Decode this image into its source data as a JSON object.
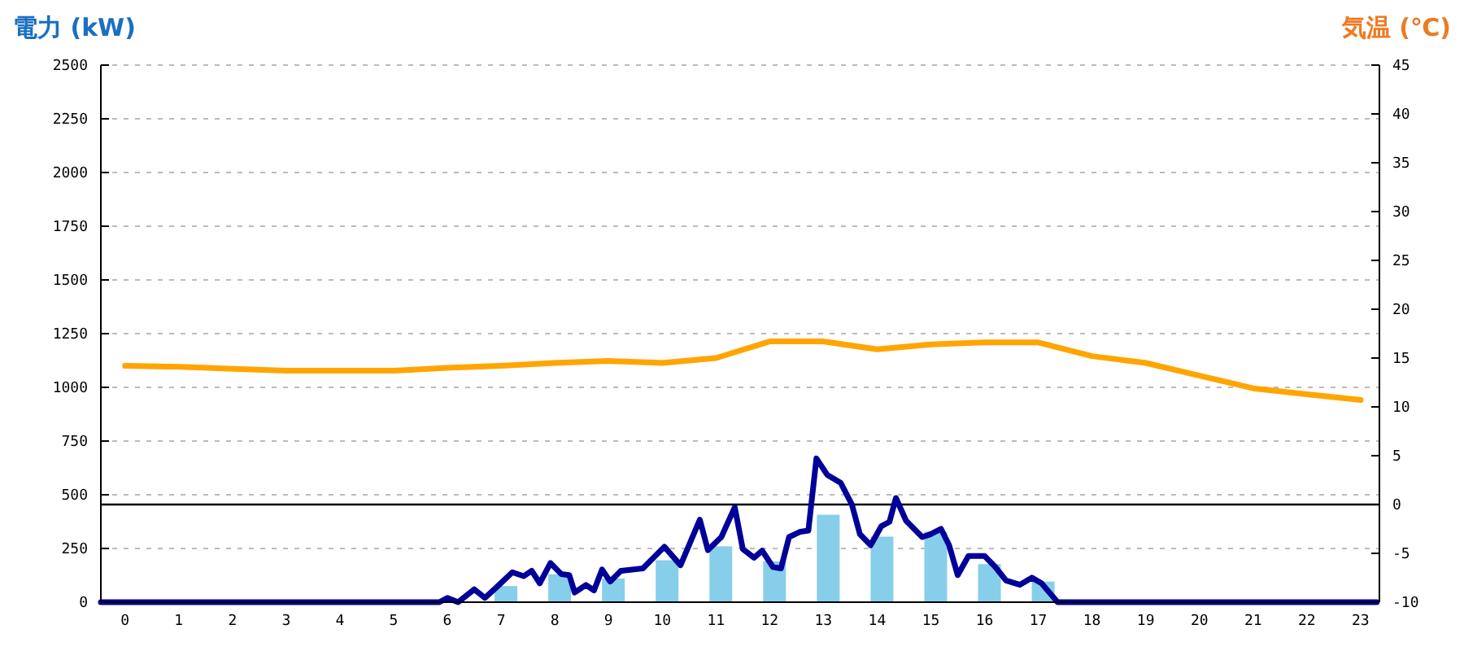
{
  "chart_data": {
    "type": "bar",
    "ylabel": "電力 (kW)",
    "y2label": "気温 (℃)",
    "xlim": [
      -0.45,
      23.35
    ],
    "xticks": [
      0,
      1,
      2,
      3,
      4,
      5,
      6,
      7,
      8,
      9,
      10,
      11,
      12,
      13,
      14,
      15,
      16,
      17,
      18,
      19,
      20,
      21,
      22,
      23
    ],
    "ylim": [
      0,
      2500
    ],
    "yticks": [
      0,
      250,
      500,
      750,
      1000,
      1250,
      1500,
      1750,
      2000,
      2250,
      2500
    ],
    "y2lim": [
      -10,
      45
    ],
    "y2ticks": [
      -10,
      -5,
      0,
      5,
      10,
      15,
      20,
      25,
      30,
      35,
      40,
      45
    ],
    "grid": "y",
    "ref_lines": [
      {
        "axis": "y2",
        "value": 0,
        "color": "#000000"
      }
    ],
    "series": [
      {
        "color": "#87ceeb",
        "x": [
          0,
          1,
          2,
          3,
          4,
          5,
          6,
          7,
          8,
          9,
          10,
          11,
          12,
          13,
          14,
          15,
          16,
          17,
          18,
          19,
          20,
          21,
          22,
          23
        ],
        "values": [
          0,
          0,
          0,
          0,
          0,
          0,
          0,
          75,
          130,
          110,
          195,
          260,
          190,
          407,
          305,
          328,
          177,
          96,
          0,
          0,
          0,
          0,
          0,
          0
        ]
      },
      {
        "type": "line",
        "color": "#000099",
        "x": [
          -0.45,
          5.85,
          6.0,
          6.2,
          6.5,
          6.7,
          6.96,
          7.21,
          7.42,
          7.57,
          7.72,
          7.92,
          8.12,
          8.27,
          8.37,
          8.58,
          8.73,
          8.88,
          9.03,
          9.23,
          9.64,
          10.04,
          10.34,
          10.7,
          10.85,
          11.1,
          11.35,
          11.5,
          11.71,
          11.86,
          12.06,
          12.21,
          12.36,
          12.57,
          12.72,
          12.87,
          13.07,
          13.32,
          13.53,
          13.68,
          13.88,
          14.08,
          14.23,
          14.35,
          14.54,
          14.84,
          14.99,
          15.19,
          15.34,
          15.5,
          15.7,
          16.0,
          16.2,
          16.4,
          16.66,
          16.88,
          17.06,
          17.36,
          23.3
        ],
        "values": [
          0,
          0,
          20,
          0,
          60,
          20,
          80,
          139,
          121,
          146,
          88,
          182,
          131,
          126,
          45,
          80,
          55,
          152,
          96,
          146,
          157,
          258,
          172,
          384,
          242,
          303,
          442,
          247,
          207,
          240,
          164,
          157,
          303,
          328,
          333,
          669,
          593,
          556,
          455,
          316,
          265,
          354,
          374,
          485,
          379,
          303,
          316,
          341,
          265,
          126,
          215,
          215,
          164,
          101,
          81,
          114,
          88,
          0,
          0
        ]
      },
      {
        "type": "line",
        "axis": "y2",
        "color": "#ffa500",
        "x": [
          0,
          1,
          2,
          3,
          4,
          5,
          6,
          7,
          8,
          9,
          10,
          11,
          12,
          13,
          14,
          15,
          16,
          17,
          18,
          19,
          20,
          21,
          22,
          23
        ],
        "values": [
          14.2,
          14.1,
          13.9,
          13.7,
          13.7,
          13.7,
          14.0,
          14.2,
          14.5,
          14.7,
          14.5,
          15.0,
          16.7,
          16.7,
          15.9,
          16.4,
          16.6,
          16.6,
          15.2,
          14.5,
          13.2,
          11.9,
          11.3,
          10.7
        ]
      }
    ]
  }
}
